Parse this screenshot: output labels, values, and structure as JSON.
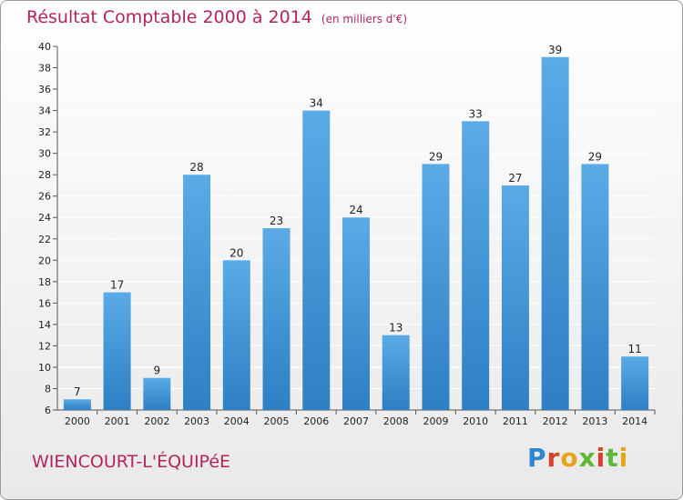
{
  "header": {
    "title": "Résultat Comptable 2000 à 2014",
    "subtitle": "(en milliers d'€)"
  },
  "footer": {
    "municipality": "WIENCOURT-L'ÉQUIPéE",
    "logo": "Proxiti"
  },
  "chart_data": {
    "type": "bar",
    "title": "Résultat Comptable 2000 à 2014",
    "unit": "(en milliers d'€)",
    "categories": [
      "2000",
      "2001",
      "2002",
      "2003",
      "2004",
      "2005",
      "2006",
      "2007",
      "2008",
      "2009",
      "2010",
      "2011",
      "2012",
      "2013",
      "2014"
    ],
    "values": [
      7,
      17,
      9,
      28,
      20,
      23,
      34,
      24,
      13,
      29,
      33,
      27,
      39,
      29,
      11
    ],
    "ylim": [
      6,
      40
    ],
    "yticks": [
      6,
      8,
      10,
      12,
      14,
      16,
      18,
      20,
      22,
      24,
      26,
      28,
      30,
      32,
      34,
      36,
      38,
      40
    ],
    "grid": true,
    "xlabel": "",
    "ylabel": "",
    "colors": {
      "bar_top": "#5aabe6",
      "bar_bottom": "#2e7fc4",
      "grid": "#ffffff",
      "axis_text": "#222222"
    }
  }
}
